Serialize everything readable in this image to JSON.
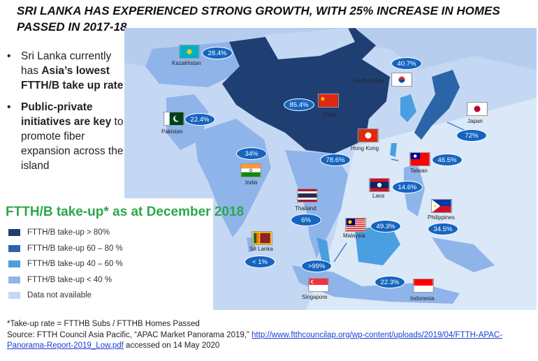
{
  "title": "SRI LANKA HAS EXPERIENCED STRONG GROWTH, WITH 25% INCREASE IN HOMES PASSED IN 2017-18",
  "bullets": [
    {
      "pre": "Sri Lanka currently has ",
      "bold": "Asia’s lowest FTTH/B take up rate",
      "post": ""
    },
    {
      "pre": "",
      "bold": "Public-private initiatives are key",
      "post": " to promote fiber expansion across the island"
    }
  ],
  "legend": {
    "title": "FTTH/B take-up* as at December 2018",
    "items": [
      {
        "label": "FTTH/B take-up > 80%",
        "color": "#1f3f73"
      },
      {
        "label": "FTTH/B take-up 60 – 80 %",
        "color": "#2b65a8"
      },
      {
        "label": "FTTH/B take-up 40 – 60 %",
        "color": "#4a9fe0"
      },
      {
        "label": "FTTH/B take-up < 40 %",
        "color": "#8fb4ea"
      },
      {
        "label": "Data not available",
        "color": "#c4d8f4"
      }
    ]
  },
  "countries": {
    "kazakhstan": {
      "name": "Kazakhstan",
      "value": "28.4%"
    },
    "south_korea": {
      "name": "South Korea",
      "value": "40.7%"
    },
    "china": {
      "name": "China",
      "value": "85.4%"
    },
    "pakistan": {
      "name": "Pakistan",
      "value": "22.4%"
    },
    "japan": {
      "name": "Japan",
      "value": "72%"
    },
    "india": {
      "name": "India",
      "value": "34%"
    },
    "hong_kong": {
      "name": "Hong Kong",
      "value": "78.6%"
    },
    "taiwan": {
      "name": "Taiwan",
      "value": "46.5%"
    },
    "laos": {
      "name": "Laos",
      "value": "14.6%"
    },
    "thailand": {
      "name": "Thailand",
      "value": "6%"
    },
    "philippines": {
      "name": "Philippines",
      "value": "34.5%"
    },
    "malaysia": {
      "name": "Malaysia",
      "value": "49.3%"
    },
    "sri_lanka": {
      "name": "Sri Lanka",
      "value": "< 1%"
    },
    "singapore": {
      "name": "Singapore",
      "value": ">99%"
    },
    "indonesia": {
      "name": "Indonesia",
      "value": "22.3%"
    }
  },
  "footnote": {
    "line1": "*Take-up rate = FTTHB Subs / FTTHB Homes Passed",
    "source_prefix": "Source: FTTH Council Asia Pacific, “APAC Market Panorama 2019,” ",
    "link": "http://www.ftthcouncilap.org/wp-content/uploads/2019/04/FTTH-APAC-Panorama-Report-2019_Low.pdf",
    "source_suffix": " accessed on 14 May 2020"
  }
}
